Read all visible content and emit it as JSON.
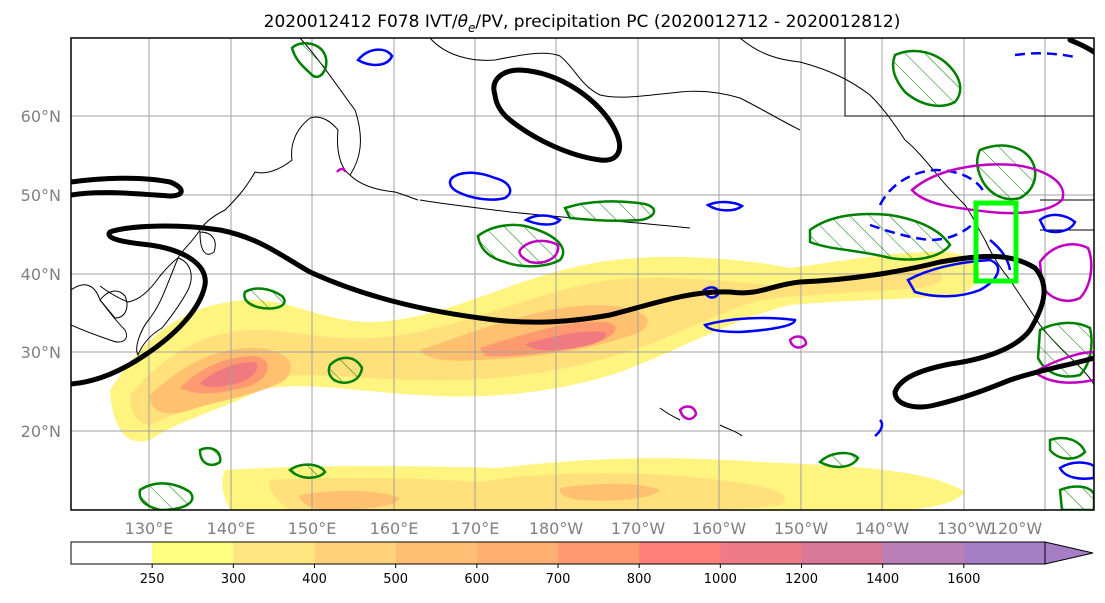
{
  "title": {
    "prefix": "2020012412 F078 IVT/",
    "theta": "θ",
    "theta_sub": "e",
    "suffix": "/PV, precipitation PC (2020012712 - 2020012812)"
  },
  "map": {
    "lat_labels": [
      "60°N",
      "50°N",
      "40°N",
      "30°N",
      "20°N"
    ],
    "lon_labels": [
      "130°E",
      "140°E",
      "150°E",
      "160°E",
      "170°E",
      "180°W",
      "170°W",
      "160°W",
      "150°W",
      "140°W",
      "130°W",
      "120°W"
    ],
    "gridline_color": "#a0a0a0",
    "colors": {
      "ocean": "#ffffff",
      "coast": "#000000",
      "ivt_contour": "#000000",
      "theta_contour": "#0000ff",
      "pv_contour": "#c000c0",
      "precip_contour": "#008000",
      "target_box": "#00ff00"
    }
  },
  "colorbar": {
    "tick_labels": [
      "250",
      "300",
      "400",
      "500",
      "600",
      "700",
      "800",
      "1000",
      "1200",
      "1400",
      "1600"
    ],
    "colors": [
      "#ffffff",
      "#ffff80",
      "#ffe680",
      "#ffd27a",
      "#ffbe74",
      "#ffb070",
      "#ff9a70",
      "#ff8078",
      "#ee7a88",
      "#d87898",
      "#bb7fb8",
      "#a57ec5"
    ],
    "extend": "max"
  }
}
